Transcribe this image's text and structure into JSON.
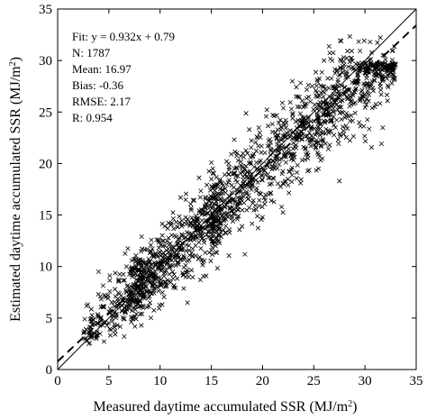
{
  "chart_data": {
    "type": "scatter",
    "xlabel": "Measured daytime accumulated SSR (MJ/m",
    "xlabel_sup": "2",
    "xlabel_end": ")",
    "ylabel": "Estimated daytime accumulated SSR (MJ/m",
    "ylabel_sup": "2",
    "ylabel_end": ")",
    "xlim": [
      0,
      35
    ],
    "ylim": [
      0,
      35
    ],
    "xticks": [
      "0",
      "5",
      "10",
      "15",
      "20",
      "25",
      "30",
      "35"
    ],
    "yticks": [
      "0",
      "5",
      "10",
      "15",
      "20",
      "25",
      "30",
      "35"
    ],
    "grid": false,
    "marker": "x",
    "stats": [
      "Fit: y = 0.932x + 0.79",
      "N: 1787",
      "Mean: 16.97",
      "Bias: -0.36",
      "RMSE: 2.17",
      "R: 0.954"
    ],
    "lines": [
      {
        "kind": "one-to-one",
        "style": "solid",
        "slope": 1,
        "intercept": 0
      },
      {
        "kind": "fit",
        "style": "dashed",
        "slope": 0.932,
        "intercept": 0.79
      }
    ],
    "point_count": 1787,
    "points_sample": [
      [
        3.1,
        3.4
      ],
      [
        4.2,
        5.0
      ],
      [
        5.0,
        5.6
      ],
      [
        6.0,
        6.4
      ],
      [
        7.1,
        7.4
      ],
      [
        8.0,
        8.6
      ],
      [
        9.0,
        9.1
      ],
      [
        10.0,
        10.3
      ],
      [
        11.0,
        10.8
      ],
      [
        12.1,
        12.0
      ],
      [
        13.0,
        12.6
      ],
      [
        14.0,
        13.5
      ],
      [
        15.0,
        14.8
      ],
      [
        16.0,
        15.7
      ],
      [
        17.1,
        16.5
      ],
      [
        18.0,
        17.6
      ],
      [
        19.0,
        18.4
      ],
      [
        20.0,
        19.6
      ],
      [
        21.0,
        20.3
      ],
      [
        22.0,
        21.5
      ],
      [
        23.0,
        22.0
      ],
      [
        24.0,
        23.4
      ],
      [
        25.0,
        24.1
      ],
      [
        26.0,
        25.3
      ],
      [
        27.0,
        26.2
      ],
      [
        28.0,
        27.4
      ],
      [
        29.0,
        28.0
      ],
      [
        30.0,
        28.8
      ],
      [
        31.0,
        29.2
      ],
      [
        32.0,
        30.1
      ],
      [
        4.0,
        9.5
      ],
      [
        6.5,
        3.2
      ],
      [
        8.2,
        12.9
      ],
      [
        10.2,
        6.3
      ],
      [
        12.0,
        16.7
      ],
      [
        14.5,
        9.1
      ],
      [
        16.5,
        20.2
      ],
      [
        18.0,
        13.9
      ],
      [
        21.0,
        24.7
      ],
      [
        22.5,
        17.9
      ],
      [
        26.0,
        30.0
      ],
      [
        27.5,
        18.3
      ],
      [
        30.5,
        31.8
      ],
      [
        31.5,
        27.5
      ],
      [
        33.0,
        29.6
      ]
    ]
  }
}
